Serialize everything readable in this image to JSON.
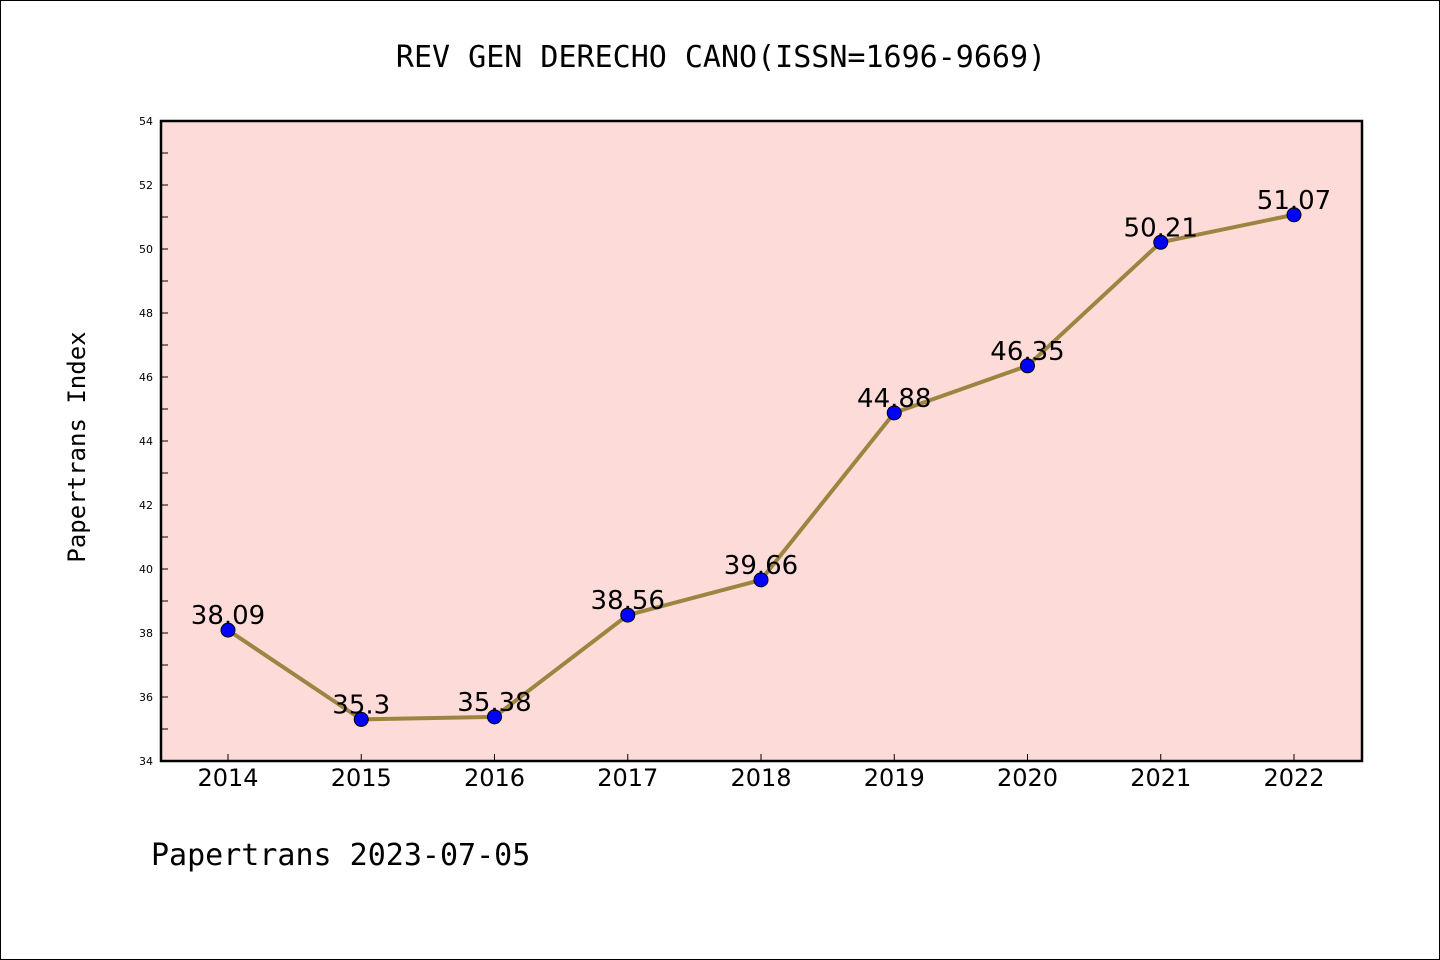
{
  "chart_data": {
    "type": "line",
    "title": "REV GEN DERECHO CANO(ISSN=1696-9669)",
    "ylabel": "Papertrans Index",
    "xlabel": "",
    "x": [
      "2014",
      "2015",
      "2016",
      "2017",
      "2018",
      "2019",
      "2020",
      "2021",
      "2022"
    ],
    "series": [
      {
        "values": [
          38.09,
          35.3,
          35.38,
          38.56,
          39.66,
          44.88,
          46.35,
          50.21,
          51.07
        ],
        "data_labels": [
          "38.09",
          "35.3",
          "35.38",
          "38.56",
          "39.66",
          "44.88",
          "46.35",
          "50.21",
          "51.07"
        ]
      }
    ],
    "ylim": [
      34,
      54
    ],
    "yticks": [
      "34",
      "36",
      "38",
      "40",
      "42",
      "44",
      "46",
      "48",
      "50",
      "52",
      "54"
    ],
    "grid": false,
    "legend": "none",
    "colors": {
      "plot_background": "#fddbd8",
      "line": "#9b8540",
      "marker": "#0000ff"
    }
  },
  "footer": "Papertrans 2023-07-05"
}
